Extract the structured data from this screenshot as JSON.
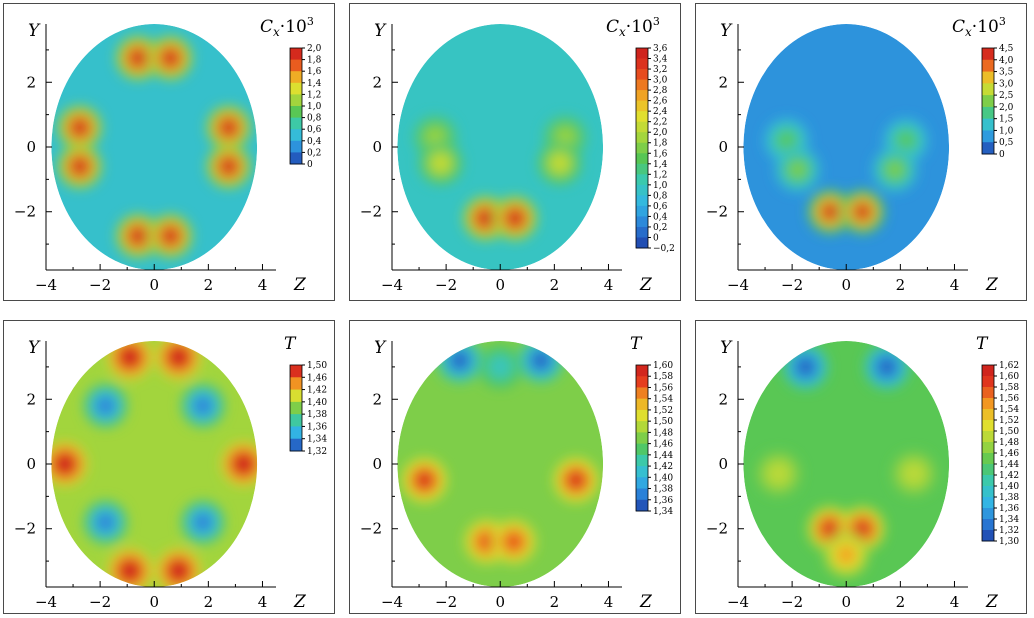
{
  "colors": {
    "jet_stops": [
      "#1e3fa8",
      "#2a7fd8",
      "#33b7e4",
      "#39c9b4",
      "#55c655",
      "#a6d63c",
      "#e6e02e",
      "#f29a22",
      "#e43a1e",
      "#c81d1d"
    ]
  },
  "chart_data": [
    {
      "type": "heatmap",
      "panel": "row1-col1",
      "xlabel": "Z",
      "ylabel": "Y",
      "colorbar_title": "C_x·10^3",
      "colorbar_title_parts": {
        "base": "C",
        "sub": "x",
        "mid": "·10",
        "sup": "3"
      },
      "x_ticks": [
        "−4",
        "−2",
        "0",
        "2",
        "4"
      ],
      "y_ticks": [
        "2",
        "0",
        "−2"
      ],
      "xlim": [
        -4,
        4.5
      ],
      "ylim": [
        -3.8,
        3.8
      ],
      "domain_radius": 3.8,
      "colorbar_labels": [
        "2,0",
        "1,8",
        "1,6",
        "1,4",
        "1,2",
        "1,0",
        "0,8",
        "0,6",
        "0,4",
        "0,2",
        "0"
      ],
      "background_level": 0.28,
      "spots": [
        {
          "z": -0.6,
          "y": 2.75,
          "value": 1.0
        },
        {
          "z": 0.6,
          "y": 2.75,
          "value": 1.0
        },
        {
          "z": -0.6,
          "y": -2.75,
          "value": 1.0
        },
        {
          "z": 0.6,
          "y": -2.75,
          "value": 1.0
        },
        {
          "z": -2.75,
          "y": 0.6,
          "value": 1.0
        },
        {
          "z": -2.75,
          "y": -0.6,
          "value": 1.0
        },
        {
          "z": 2.75,
          "y": 0.6,
          "value": 1.0
        },
        {
          "z": 2.75,
          "y": -0.6,
          "value": 1.0
        }
      ]
    },
    {
      "type": "heatmap",
      "panel": "row1-col2",
      "xlabel": "Z",
      "ylabel": "Y",
      "colorbar_title": "C_x·10^3",
      "colorbar_title_parts": {
        "base": "C",
        "sub": "x",
        "mid": "·10",
        "sup": "3"
      },
      "x_ticks": [
        "−4",
        "−2",
        "0",
        "2",
        "4"
      ],
      "y_ticks": [
        "2",
        "0",
        "−2"
      ],
      "xlim": [
        -4,
        4.5
      ],
      "ylim": [
        -3.8,
        3.8
      ],
      "domain_radius": 3.8,
      "colorbar_labels": [
        "3,6",
        "3,4",
        "3,2",
        "3,0",
        "2,8",
        "2,6",
        "2,4",
        "2,2",
        "2,0",
        "1,8",
        "1,6",
        "1,4",
        "1,2",
        "1,0",
        "0,8",
        "0,6",
        "0,4",
        "0,2",
        "0",
        "−0,2"
      ],
      "background_level": 0.3,
      "spots": [
        {
          "z": -0.55,
          "y": -2.2,
          "value": 1.0
        },
        {
          "z": 0.55,
          "y": -2.2,
          "value": 1.0
        },
        {
          "z": -2.4,
          "y": 0.3,
          "value": 0.55
        },
        {
          "z": -2.2,
          "y": -0.5,
          "value": 0.62
        },
        {
          "z": 2.4,
          "y": 0.3,
          "value": 0.55
        },
        {
          "z": 2.2,
          "y": -0.5,
          "value": 0.62
        }
      ]
    },
    {
      "type": "heatmap",
      "panel": "row1-col3",
      "xlabel": "Z",
      "ylabel": "Y",
      "colorbar_title": "C_x·10^3",
      "colorbar_title_parts": {
        "base": "C",
        "sub": "x",
        "mid": "·10",
        "sup": "3"
      },
      "x_ticks": [
        "−4",
        "−2",
        "0",
        "2",
        "4"
      ],
      "y_ticks": [
        "2",
        "0",
        "−2"
      ],
      "xlim": [
        -4,
        4.5
      ],
      "ylim": [
        -3.8,
        3.8
      ],
      "domain_radius": 3.8,
      "colorbar_labels": [
        "4,5",
        "4,0",
        "3,5",
        "3,0",
        "2,5",
        "2,0",
        "1,5",
        "1,0",
        "0,5",
        "0"
      ],
      "background_level": 0.15,
      "spots": [
        {
          "z": -0.6,
          "y": -2.0,
          "value": 1.0
        },
        {
          "z": 0.6,
          "y": -2.0,
          "value": 1.0
        },
        {
          "z": -2.2,
          "y": 0.2,
          "value": 0.45
        },
        {
          "z": -1.8,
          "y": -0.7,
          "value": 0.5
        },
        {
          "z": 2.2,
          "y": 0.2,
          "value": 0.45
        },
        {
          "z": 1.8,
          "y": -0.7,
          "value": 0.5
        }
      ]
    },
    {
      "type": "heatmap",
      "panel": "row2-col1",
      "xlabel": "Z",
      "ylabel": "Y",
      "colorbar_title": "T",
      "x_ticks": [
        "−4",
        "−2",
        "0",
        "2",
        "4"
      ],
      "y_ticks": [
        "2",
        "0",
        "−2"
      ],
      "xlim": [
        -4,
        4.5
      ],
      "ylim": [
        -3.8,
        3.8
      ],
      "domain_radius": 3.8,
      "colorbar_labels": [
        "1,50",
        "1,46",
        "1,42",
        "1,40",
        "1,38",
        "1,36",
        "1,34",
        "1,32"
      ],
      "background_level": 0.55,
      "spots": [
        {
          "z": -0.9,
          "y": 3.3,
          "value": 1.0
        },
        {
          "z": 0.9,
          "y": 3.3,
          "value": 1.0
        },
        {
          "z": -0.9,
          "y": -3.3,
          "value": 1.0
        },
        {
          "z": 0.9,
          "y": -3.3,
          "value": 1.0
        },
        {
          "z": -3.3,
          "y": 0.0,
          "value": 1.0
        },
        {
          "z": 3.3,
          "y": 0.0,
          "value": 1.0
        },
        {
          "z": -1.8,
          "y": 1.8,
          "value": 0.1
        },
        {
          "z": 1.8,
          "y": 1.8,
          "value": 0.1
        },
        {
          "z": -1.8,
          "y": -1.8,
          "value": 0.1
        },
        {
          "z": 1.8,
          "y": -1.8,
          "value": 0.1
        }
      ]
    },
    {
      "type": "heatmap",
      "panel": "row2-col2",
      "xlabel": "Z",
      "ylabel": "Y",
      "colorbar_title": "T",
      "x_ticks": [
        "−4",
        "−2",
        "0",
        "2",
        "4"
      ],
      "y_ticks": [
        "2",
        "0",
        "−2"
      ],
      "xlim": [
        -4,
        4.5
      ],
      "ylim": [
        -3.8,
        3.8
      ],
      "domain_radius": 3.8,
      "colorbar_labels": [
        "1,60",
        "1,58",
        "1,56",
        "1,54",
        "1,52",
        "1,50",
        "1,48",
        "1,46",
        "1,44",
        "1,42",
        "1,40",
        "1,38",
        "1,36",
        "1,34"
      ],
      "background_level": 0.5,
      "spots": [
        {
          "z": -2.8,
          "y": -0.5,
          "value": 0.95
        },
        {
          "z": 2.8,
          "y": -0.5,
          "value": 0.95
        },
        {
          "z": -0.5,
          "y": -2.4,
          "value": 0.88
        },
        {
          "z": 0.5,
          "y": -2.4,
          "value": 0.88
        },
        {
          "z": -1.5,
          "y": 3.2,
          "value": 0.05
        },
        {
          "z": 1.5,
          "y": 3.2,
          "value": 0.05
        },
        {
          "z": 0.0,
          "y": 3.0,
          "value": 0.3
        }
      ]
    },
    {
      "type": "heatmap",
      "panel": "row2-col3",
      "xlabel": "Z",
      "ylabel": "Y",
      "colorbar_title": "T",
      "x_ticks": [
        "−4",
        "−2",
        "0",
        "2",
        "4"
      ],
      "y_ticks": [
        "2",
        "0",
        "−2"
      ],
      "xlim": [
        -4,
        4.5
      ],
      "ylim": [
        -3.8,
        3.8
      ],
      "domain_radius": 3.8,
      "colorbar_labels": [
        "1,62",
        "1,60",
        "1,58",
        "1,56",
        "1,54",
        "1,52",
        "1,50",
        "1,48",
        "1,46",
        "1,44",
        "1,42",
        "1,40",
        "1,38",
        "1,36",
        "1,34",
        "1,32",
        "1,30"
      ],
      "background_level": 0.45,
      "spots": [
        {
          "z": -0.6,
          "y": -2.0,
          "value": 0.95
        },
        {
          "z": 0.6,
          "y": -2.0,
          "value": 0.95
        },
        {
          "z": 0.0,
          "y": -2.8,
          "value": 0.78
        },
        {
          "z": -1.5,
          "y": 3.0,
          "value": 0.05
        },
        {
          "z": 1.5,
          "y": 3.0,
          "value": 0.05
        },
        {
          "z": -2.5,
          "y": -0.3,
          "value": 0.6
        },
        {
          "z": 2.5,
          "y": -0.3,
          "value": 0.6
        }
      ]
    }
  ]
}
